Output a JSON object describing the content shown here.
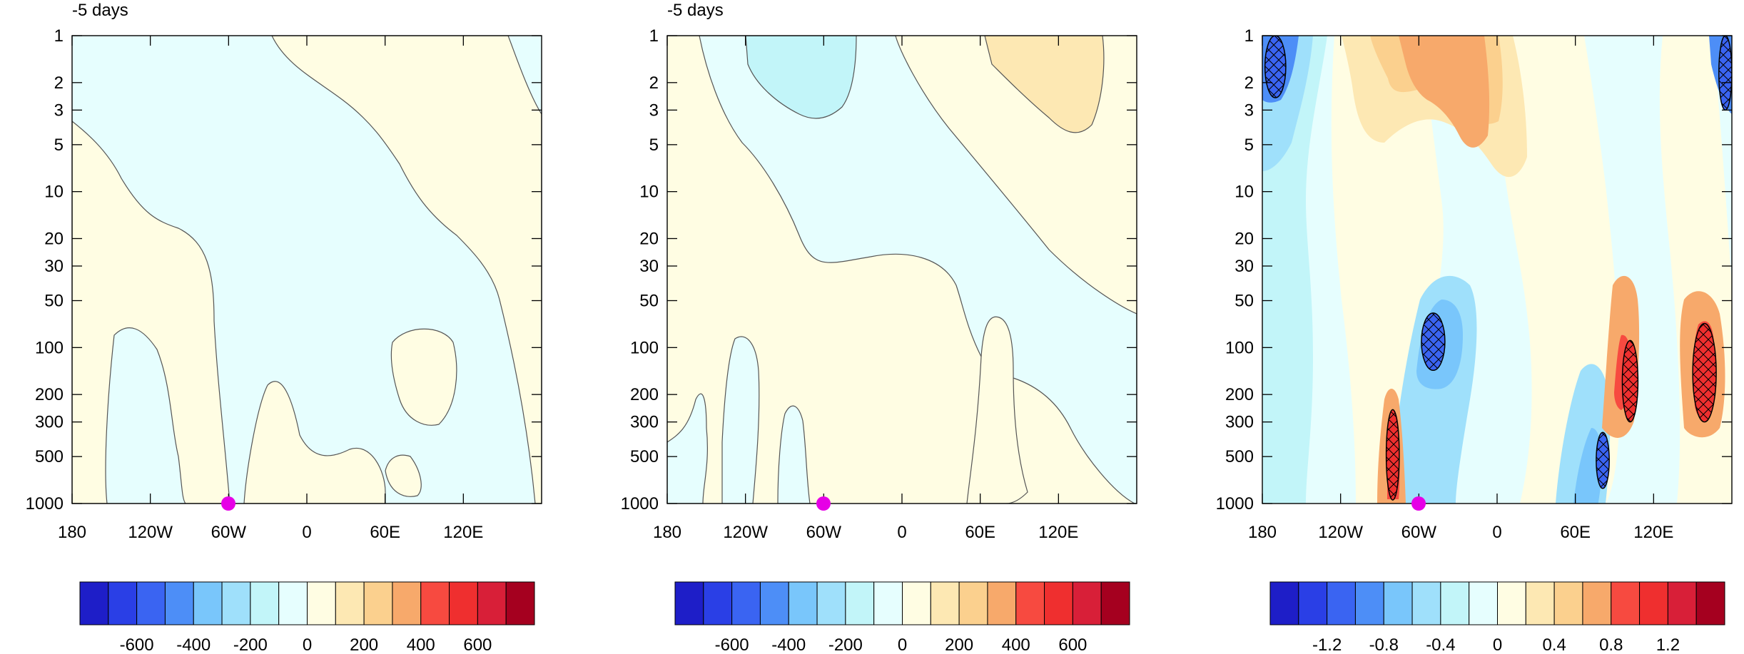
{
  "figure": {
    "pressure_levels": [
      1,
      2,
      3,
      5,
      10,
      20,
      30,
      50,
      100,
      200,
      300,
      500,
      1000
    ],
    "longitude_ticks": [
      "180",
      "120W",
      "60W",
      "0",
      "60E",
      "120E"
    ],
    "marker_color": "#e600e6",
    "outline_color": "#555555",
    "hatch_color": "#000000"
  },
  "chart_data": [
    {
      "type": "heatmap",
      "title": "-5 days",
      "xlabel": "",
      "ylabel": "",
      "x_range": [
        -180,
        180
      ],
      "y_range": [
        1000,
        1
      ],
      "y_scale": "log",
      "marker": {
        "longitude": -60,
        "pressure": 1000
      },
      "colorbar": {
        "colors": [
          "#1e1ec8",
          "#2a3fe6",
          "#3a64f2",
          "#4d8ef7",
          "#79c6fb",
          "#9fe0fb",
          "#c2f5f9",
          "#e6fefe",
          "#fffde3",
          "#fde8b3",
          "#fbd08e",
          "#f7a96b",
          "#f74a40",
          "#ef2f2f",
          "#d81f38",
          "#a5001f"
        ],
        "tick_labels": [
          "-600",
          "-400",
          "-200",
          "0",
          "200",
          "400",
          "600"
        ]
      },
      "regions": [
        {
          "name": "positive",
          "level": "0 to 200",
          "color": "#fffde3"
        },
        {
          "name": "negative",
          "level": "-200 to 0",
          "color": "#e6fefe"
        }
      ]
    },
    {
      "type": "heatmap",
      "title": "-5 days",
      "xlabel": "",
      "ylabel": "",
      "x_range": [
        -180,
        180
      ],
      "y_range": [
        1000,
        1
      ],
      "y_scale": "log",
      "marker": {
        "longitude": -60,
        "pressure": 1000
      },
      "colorbar": {
        "colors": [
          "#1e1ec8",
          "#2a3fe6",
          "#3a64f2",
          "#4d8ef7",
          "#79c6fb",
          "#9fe0fb",
          "#c2f5f9",
          "#e6fefe",
          "#fffde3",
          "#fde8b3",
          "#fbd08e",
          "#f7a96b",
          "#f74a40",
          "#ef2f2f",
          "#d81f38",
          "#a5001f"
        ],
        "tick_labels": [
          "-600",
          "-400",
          "-200",
          "0",
          "200",
          "400",
          "600"
        ]
      },
      "regions": [
        {
          "name": "positive",
          "level": "0 to 200",
          "color": "#fffde3"
        },
        {
          "name": "negative",
          "level": "-200 to 0",
          "color": "#e6fefe"
        },
        {
          "name": "negative-strong",
          "level": "-400 to -200",
          "color": "#c2f5f9"
        },
        {
          "name": "positive-strong",
          "level": "200 to 400",
          "color": "#fde8b3"
        }
      ]
    },
    {
      "type": "heatmap",
      "title": "",
      "xlabel": "",
      "ylabel": "",
      "x_range": [
        -180,
        180
      ],
      "y_range": [
        1000,
        1
      ],
      "y_scale": "log",
      "marker": {
        "longitude": -60,
        "pressure": 1000
      },
      "colorbar": {
        "colors": [
          "#1e1ec8",
          "#2a3fe6",
          "#3a64f2",
          "#4d8ef7",
          "#79c6fb",
          "#9fe0fb",
          "#c2f5f9",
          "#e6fefe",
          "#fffde3",
          "#fde8b3",
          "#fbd08e",
          "#f7a96b",
          "#f74a40",
          "#ef2f2f",
          "#d81f38",
          "#a5001f"
        ],
        "tick_labels": [
          "-1.2",
          "-0.8",
          "-0.4",
          "0",
          "0.4",
          "0.8",
          "1.2"
        ]
      },
      "significant_regions": [
        {
          "sign": "negative",
          "lon_range": [
            -178,
            -162
          ],
          "p_range": [
            1,
            2.5
          ]
        },
        {
          "sign": "positive",
          "lon_range": [
            -85,
            -75
          ],
          "p_range": [
            250,
            950
          ]
        },
        {
          "sign": "negative",
          "lon_range": [
            -58,
            -40
          ],
          "p_range": [
            60,
            140
          ]
        },
        {
          "sign": "negative",
          "lon_range": [
            76,
            86
          ],
          "p_range": [
            350,
            800
          ]
        },
        {
          "sign": "positive",
          "lon_range": [
            96,
            108
          ],
          "p_range": [
            90,
            300
          ]
        },
        {
          "sign": "positive",
          "lon_range": [
            150,
            168
          ],
          "p_range": [
            70,
            300
          ]
        },
        {
          "sign": "negative",
          "lon_range": [
            170,
            180
          ],
          "p_range": [
            1,
            3
          ]
        }
      ]
    }
  ]
}
